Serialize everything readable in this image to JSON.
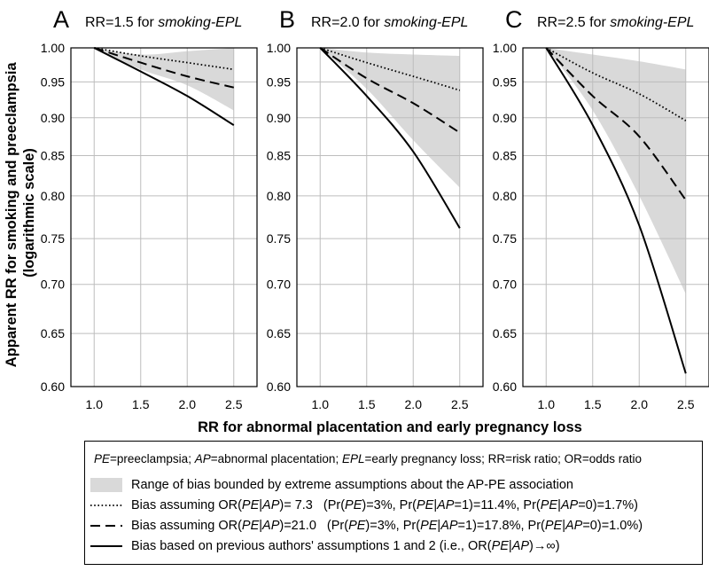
{
  "figure": {
    "ylabel_line1": "Apparent RR for smoking and preeclampsia",
    "ylabel_line2": "(logarithmic scale)",
    "xlabel": "RR for abnormal placentation and early pregnancy loss"
  },
  "colors": {
    "band": "#d9d9d9",
    "grid": "#bdbdbd",
    "line": "#000000"
  },
  "chart_data": [
    {
      "type": "line",
      "panel_letter": "A",
      "title_prefix": "RR=1.5 for ",
      "title_italic": "smoking-EPL",
      "x_ticks": [
        "1.0",
        "1.5",
        "2.0",
        "2.5"
      ],
      "y_ticks": [
        "0.60",
        "0.65",
        "0.70",
        "0.75",
        "0.80",
        "0.85",
        "0.90",
        "0.95",
        "1.00"
      ],
      "xlim": [
        0.75,
        2.75
      ],
      "ylim": [
        0.6,
        1.0
      ],
      "yscale": "log",
      "x": [
        1.0,
        1.5,
        2.0,
        2.5
      ],
      "band": {
        "lower": [
          1.0,
          0.968,
          0.945,
          0.91
        ],
        "upper": [
          1.0,
          0.99,
          0.995,
          1.0
        ]
      },
      "series": [
        {
          "name": "OR7.3",
          "style": "dotted",
          "values": [
            1.0,
            0.988,
            0.978,
            0.968
          ]
        },
        {
          "name": "OR21.0",
          "style": "dashed",
          "values": [
            1.0,
            0.978,
            0.958,
            0.942
          ]
        },
        {
          "name": "previous",
          "style": "solid",
          "values": [
            1.0,
            0.965,
            0.93,
            0.89
          ]
        }
      ]
    },
    {
      "type": "line",
      "panel_letter": "B",
      "title_prefix": "RR=2.0 for ",
      "title_italic": "smoking-EPL",
      "x_ticks": [
        "1.0",
        "1.5",
        "2.0",
        "2.5"
      ],
      "y_ticks": [
        "0.60",
        "0.65",
        "0.70",
        "0.75",
        "0.80",
        "0.85",
        "0.90",
        "0.95",
        "1.00"
      ],
      "xlim": [
        0.75,
        2.75
      ],
      "ylim": [
        0.6,
        1.0
      ],
      "yscale": "log",
      "x": [
        1.0,
        1.5,
        2.0,
        2.5
      ],
      "band": {
        "lower": [
          1.0,
          0.94,
          0.87,
          0.81
        ],
        "upper": [
          1.0,
          0.993,
          0.99,
          0.988
        ]
      },
      "series": [
        {
          "name": "OR7.3",
          "style": "dotted",
          "values": [
            1.0,
            0.978,
            0.958,
            0.938
          ]
        },
        {
          "name": "OR21.0",
          "style": "dashed",
          "values": [
            1.0,
            0.955,
            0.92,
            0.88
          ]
        },
        {
          "name": "previous",
          "style": "solid",
          "values": [
            1.0,
            0.93,
            0.855,
            0.762
          ]
        }
      ]
    },
    {
      "type": "line",
      "panel_letter": "C",
      "title_prefix": "RR=2.5 for ",
      "title_italic": "smoking-EPL",
      "x_ticks": [
        "1.0",
        "1.5",
        "2.0",
        "2.5"
      ],
      "y_ticks": [
        "0.60",
        "0.65",
        "0.70",
        "0.75",
        "0.80",
        "0.85",
        "0.90",
        "0.95",
        "1.00"
      ],
      "xlim": [
        0.75,
        2.75
      ],
      "ylim": [
        0.6,
        1.0
      ],
      "yscale": "log",
      "x": [
        1.0,
        1.5,
        2.0,
        2.5
      ],
      "band": {
        "lower": [
          1.0,
          0.91,
          0.8,
          0.69
        ],
        "upper": [
          1.0,
          0.99,
          0.98,
          0.968
        ]
      },
      "series": [
        {
          "name": "OR7.3",
          "style": "dotted",
          "values": [
            1.0,
            0.963,
            0.933,
            0.896
          ]
        },
        {
          "name": "OR21.0",
          "style": "dashed",
          "values": [
            1.0,
            0.93,
            0.875,
            0.795
          ]
        },
        {
          "name": "previous",
          "style": "solid",
          "values": [
            1.0,
            0.89,
            0.765,
            0.612
          ]
        }
      ]
    }
  ],
  "legend": {
    "abbrev": [
      {
        "t": "PE",
        "i": true
      },
      {
        "t": "=preeclampsia;  ",
        "i": false
      },
      {
        "t": "AP",
        "i": true
      },
      {
        "t": "=abnormal placentation;  ",
        "i": false
      },
      {
        "t": "EPL",
        "i": true
      },
      {
        "t": "=early pregnancy loss;  RR=risk ratio;  OR=odds ratio",
        "i": false
      }
    ],
    "items": [
      {
        "style": "band",
        "text": [
          {
            "t": "Range of bias bounded by extreme assumptions about the AP-PE association",
            "i": false
          }
        ],
        "params": []
      },
      {
        "style": "dotted",
        "text": [
          {
            "t": "Bias assuming OR(",
            "i": false
          },
          {
            "t": "PE",
            "i": true
          },
          {
            "t": "|",
            "i": false
          },
          {
            "t": "AP",
            "i": true
          },
          {
            "t": ")=  7.3",
            "i": false
          }
        ],
        "params": [
          {
            "t": "(Pr(",
            "i": false
          },
          {
            "t": "PE",
            "i": true
          },
          {
            "t": ")=3%, Pr(",
            "i": false
          },
          {
            "t": "PE",
            "i": true
          },
          {
            "t": "|",
            "i": false
          },
          {
            "t": "AP",
            "i": true
          },
          {
            "t": "=1)=11.4%, Pr(",
            "i": false
          },
          {
            "t": "PE",
            "i": true
          },
          {
            "t": "|",
            "i": false
          },
          {
            "t": "AP",
            "i": true
          },
          {
            "t": "=0)=1.7%)",
            "i": false
          }
        ]
      },
      {
        "style": "dashed",
        "text": [
          {
            "t": "Bias assuming OR(",
            "i": false
          },
          {
            "t": "PE",
            "i": true
          },
          {
            "t": "|",
            "i": false
          },
          {
            "t": "AP",
            "i": true
          },
          {
            "t": ")=21.0",
            "i": false
          }
        ],
        "params": [
          {
            "t": "(Pr(",
            "i": false
          },
          {
            "t": "PE",
            "i": true
          },
          {
            "t": ")=3%, Pr(",
            "i": false
          },
          {
            "t": "PE",
            "i": true
          },
          {
            "t": "|",
            "i": false
          },
          {
            "t": "AP",
            "i": true
          },
          {
            "t": "=1)=17.8%, Pr(",
            "i": false
          },
          {
            "t": "PE",
            "i": true
          },
          {
            "t": "|",
            "i": false
          },
          {
            "t": "AP",
            "i": true
          },
          {
            "t": "=0)=1.0%)",
            "i": false
          }
        ]
      },
      {
        "style": "solid",
        "text": [
          {
            "t": "Bias based on previous authors' assumptions 1 and 2  (i.e., OR(",
            "i": false
          },
          {
            "t": "PE",
            "i": true
          },
          {
            "t": "|",
            "i": false
          },
          {
            "t": "AP",
            "i": true
          },
          {
            "t": ")→∞)",
            "i": false
          }
        ],
        "params": []
      }
    ]
  }
}
